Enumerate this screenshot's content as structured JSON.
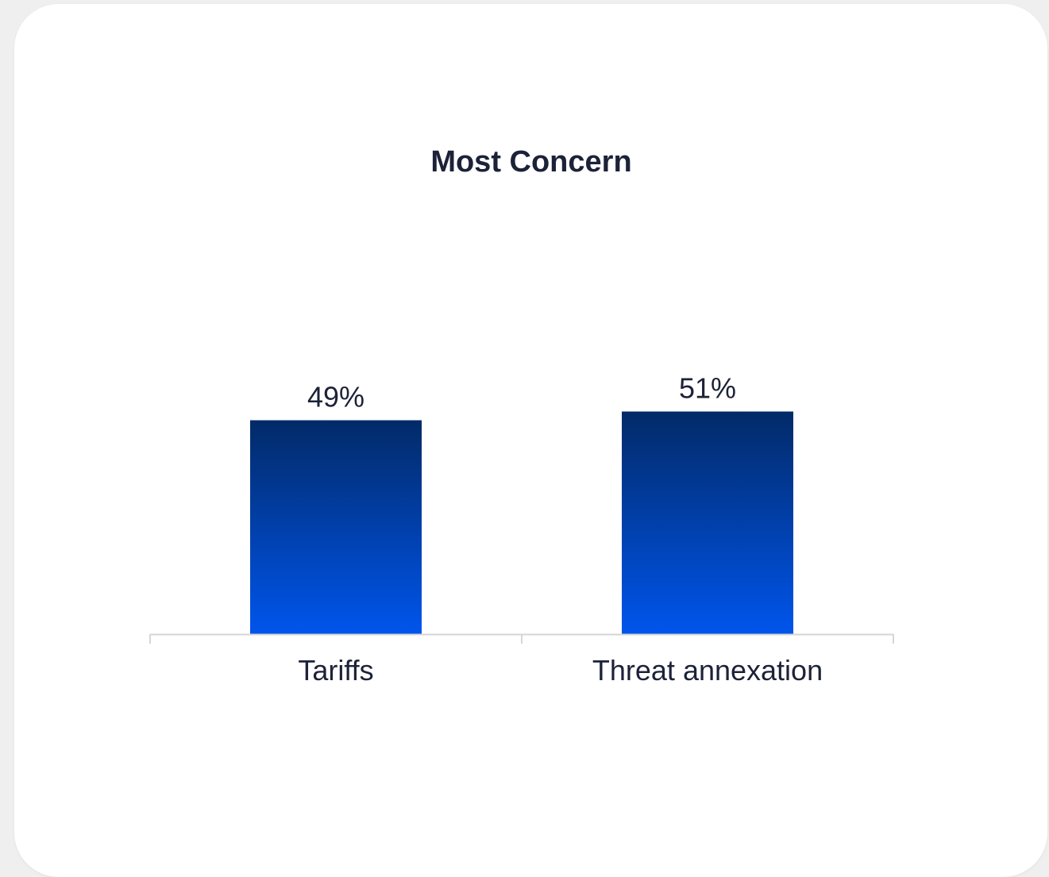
{
  "chart_data": {
    "type": "bar",
    "title": "Most Concern",
    "categories": [
      "Tariffs",
      "Threat annexation"
    ],
    "values": [
      49,
      51
    ],
    "value_labels": [
      "49%",
      "51%"
    ],
    "ylim": [
      0,
      100
    ],
    "grid": false,
    "legend": "none",
    "colors": {
      "bar_top": "#022a68",
      "bar_bottom": "#0055ec",
      "axis": "#d6d6d6",
      "text": "#1c2238"
    }
  }
}
